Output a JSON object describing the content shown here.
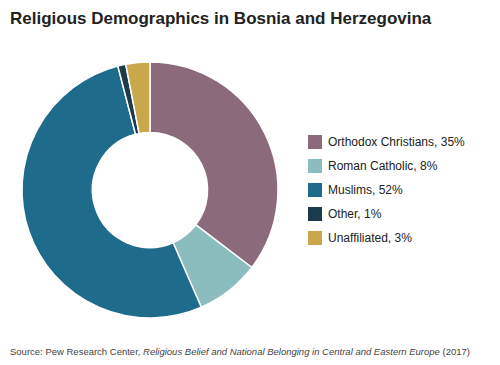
{
  "chart_data": {
    "type": "donut",
    "title": "Religious Demographics in Bosnia and Herzegovina",
    "categories": [
      "Orthodox Christians, 35%",
      "Roman Catholic, 8%",
      "Muslims, 52%",
      "Other, 1%",
      "Unaffiliated, 3%"
    ],
    "values": [
      35,
      8,
      52,
      1,
      3
    ],
    "colors": [
      "#8B6B7B",
      "#8BBCBE",
      "#1E6B8C",
      "#1B3A4B",
      "#C8A84B"
    ],
    "legend": "right",
    "annotations": [
      "Source: Pew Research Center, ",
      "Religious Belief and National Belonging in Central and Eastern Europe",
      " (2017)"
    ]
  }
}
